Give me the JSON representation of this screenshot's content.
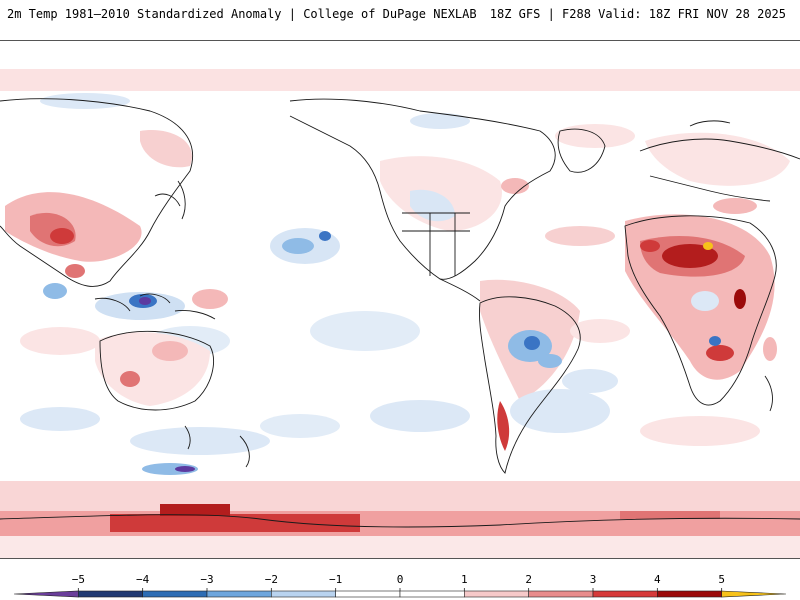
{
  "header": {
    "left_title": "2m Temp 1981–2010 Standardized Anomaly | College of DuPage NEXLAB",
    "right_title": "18Z GFS | F288 Valid: 18Z FRI NOV 28 2025"
  },
  "colorbar": {
    "ticks": [
      "−5",
      "−4",
      "−3",
      "−2",
      "−1",
      "0",
      "1",
      "2",
      "3",
      "4",
      "5"
    ],
    "colors": [
      "#6a3d9a",
      "#213a73",
      "#2e6db4",
      "#6ea6dd",
      "#b9d3ef",
      "#ffffff",
      "#ffffff",
      "#f6c9c9",
      "#e88c8c",
      "#d63a3a",
      "#9b0a0a",
      "#f7c21a"
    ]
  },
  "map": {
    "projection": "global equirectangular, Pacific-centered",
    "anomaly_colors": {
      "strong_warm": "#b31d1d",
      "warm": "#e07474",
      "mild_warm": "#f7d0d0",
      "neutral": "#ffffff",
      "mild_cool": "#d7e5f5",
      "cool": "#8fbbe6",
      "strong_cool": "#3a74c4",
      "extreme_cool": "#5c3aa0"
    }
  }
}
